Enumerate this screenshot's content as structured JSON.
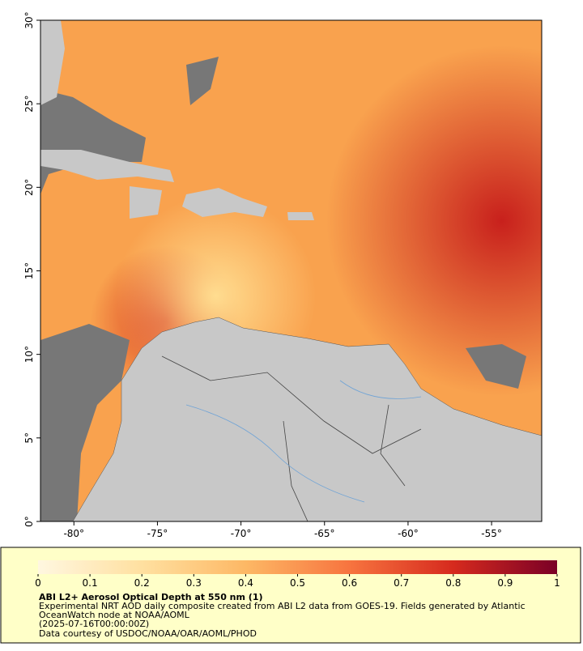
{
  "map": {
    "xlim": [
      -82,
      -52
    ],
    "ylim": [
      0,
      30
    ],
    "xticks": [
      {
        "value": -80,
        "label": "-80°"
      },
      {
        "value": -75,
        "label": "-75°"
      },
      {
        "value": -70,
        "label": "-70°"
      },
      {
        "value": -65,
        "label": "-65°"
      },
      {
        "value": -60,
        "label": "-60°"
      },
      {
        "value": -55,
        "label": "-55°"
      }
    ],
    "yticks": [
      {
        "value": 0,
        "label": "0°"
      },
      {
        "value": 5,
        "label": "5°"
      },
      {
        "value": 10,
        "label": "10°"
      },
      {
        "value": 15,
        "label": "15°"
      },
      {
        "value": 20,
        "label": "20°"
      },
      {
        "value": 25,
        "label": "25°"
      },
      {
        "value": 30,
        "label": "30°"
      }
    ]
  },
  "legend": {
    "lim": [
      0,
      1
    ],
    "ticks": [
      0,
      0.1,
      0.2,
      0.3,
      0.4,
      0.5,
      0.6,
      0.7,
      0.8,
      0.9,
      1
    ],
    "title": "ABI L2+ Aerosol Optical Depth at 550 nm (1)",
    "lines": [
      "Experimental NRT AOD daily composite created from ABI L2 data from GOES-19. Fields generated by Atlantic",
      "OceanWatch node at NOAA/AOML",
      "(2025-07-16T00:00:00Z)",
      "Data courtesy of USDOC/NOAA/OAR/AOML/PHOD"
    ]
  }
}
